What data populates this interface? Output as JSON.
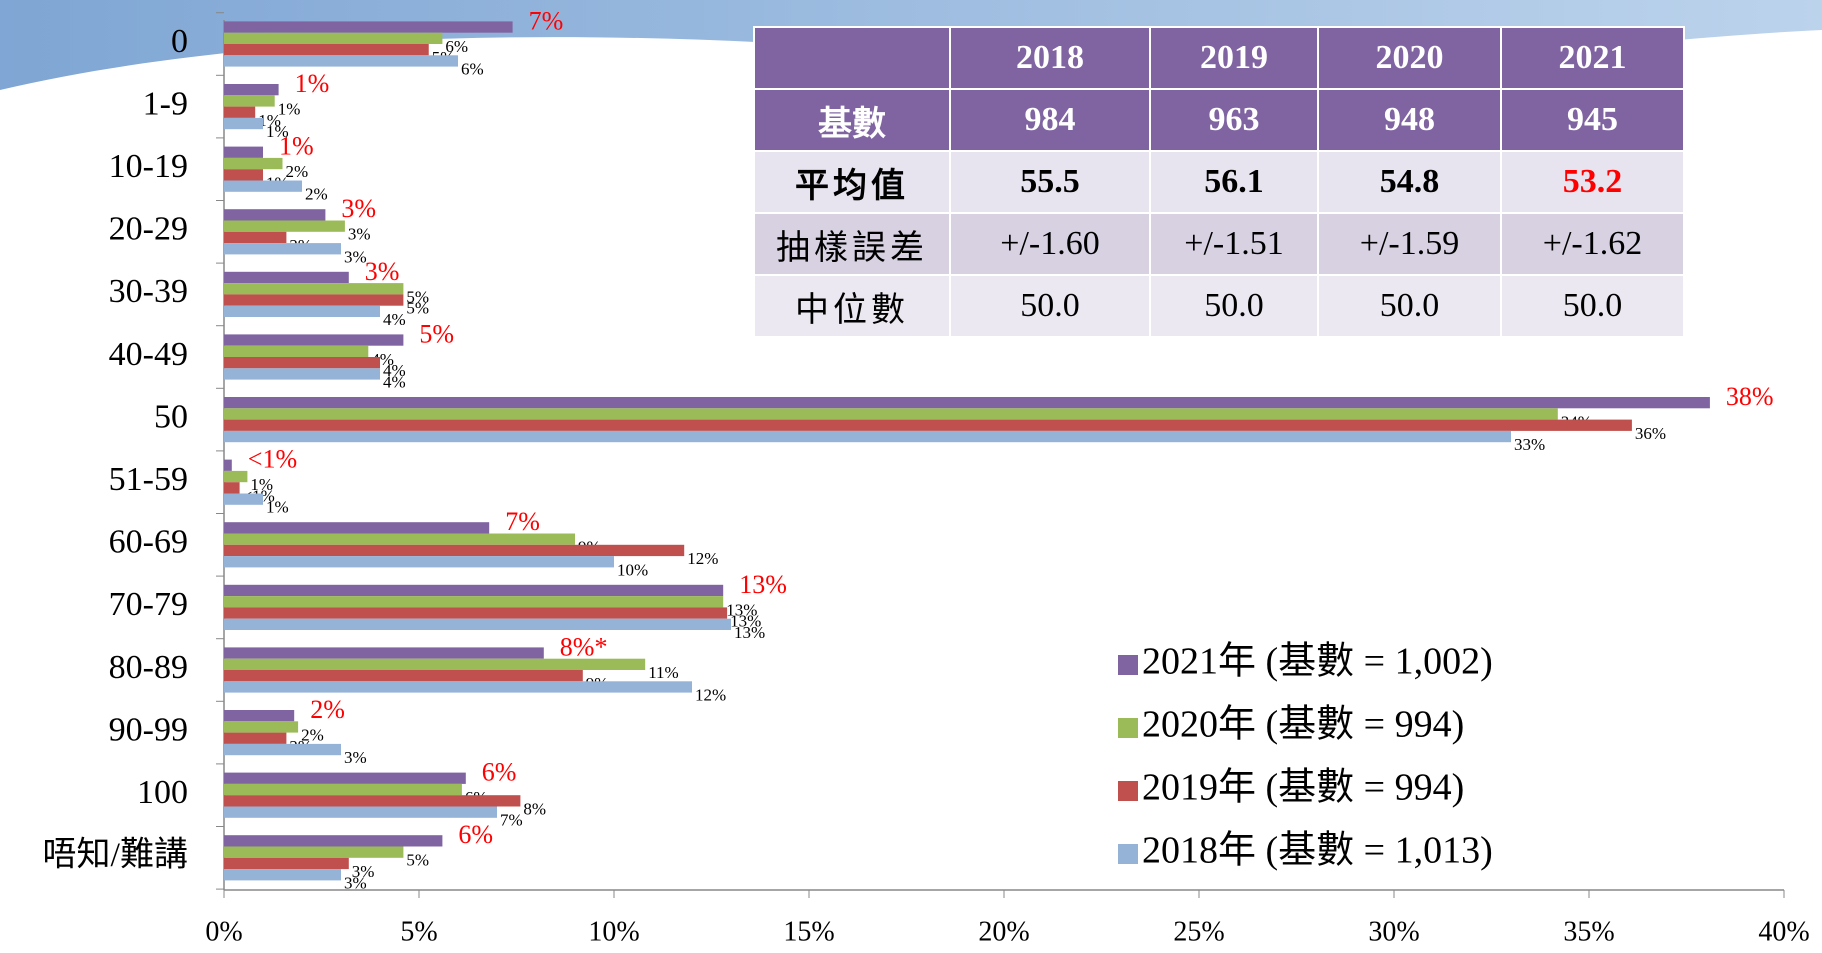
{
  "chart_data": {
    "type": "barh",
    "categories": [
      "0",
      "1-9",
      "10-19",
      "20-29",
      "30-39",
      "40-49",
      "50",
      "51-59",
      "60-69",
      "70-79",
      "80-89",
      "90-99",
      "100",
      "唔知/難講"
    ],
    "series": [
      {
        "name": "2021年 (基數 = 1,002)",
        "color": "#8064a2",
        "values": [
          7.4,
          1.4,
          1.0,
          2.6,
          3.2,
          4.6,
          38.1,
          0.2,
          6.8,
          12.8,
          8.2,
          1.8,
          6.2,
          5.6
        ],
        "value_labels": [
          "7%",
          "1%",
          "1%",
          "3%",
          "3%",
          "5%",
          "38%",
          "<1%",
          "7%",
          "13%",
          "8%*",
          "2%",
          "6%",
          "6%"
        ]
      },
      {
        "name": "2020年 (基數 = 994)",
        "color": "#9bbb59",
        "values": [
          5.6,
          1.3,
          1.5,
          3.1,
          4.6,
          3.7,
          34.2,
          0.6,
          9.0,
          12.8,
          10.8,
          1.9,
          6.1,
          4.6
        ],
        "value_labels": [
          "6%",
          "1%",
          "2%",
          "3%",
          "5%",
          "4%",
          "34%",
          "1%",
          "9%",
          "13%",
          "11%",
          "2%",
          "6%",
          "5%"
        ]
      },
      {
        "name": "2019年 (基數 = 994)",
        "color": "#c0504d",
        "values": [
          5.25,
          0.8,
          1.0,
          1.6,
          4.6,
          4.0,
          36.1,
          0.4,
          11.8,
          12.9,
          9.2,
          1.6,
          7.6,
          3.2
        ],
        "value_labels": [
          "5%",
          "1%",
          "1%",
          "2%",
          "5%",
          "4%",
          "36%",
          "<1%",
          "12%",
          "13%",
          "9%",
          "2%",
          "8%",
          "3%"
        ]
      },
      {
        "name": "2018年 (基數 = 1,013)",
        "color": "#95b3d7",
        "values": [
          6.0,
          1.0,
          2.0,
          3.0,
          4.0,
          4.0,
          33.0,
          1.0,
          10.0,
          13.0,
          12.0,
          3.0,
          7.0,
          3.0
        ],
        "value_labels": [
          "6%",
          "1%",
          "2%",
          "3%",
          "4%",
          "4%",
          "33%",
          "1%",
          "10%",
          "13%",
          "12%",
          "3%",
          "7%",
          "3%"
        ]
      }
    ],
    "xlim": [
      0,
      40
    ],
    "xticks": [
      {
        "value": 0,
        "label": "0%"
      },
      {
        "value": 5,
        "label": "5%"
      },
      {
        "value": 10,
        "label": "10%"
      },
      {
        "value": 15,
        "label": "15%"
      },
      {
        "value": 20,
        "label": "20%"
      },
      {
        "value": 25,
        "label": "25%"
      },
      {
        "value": 30,
        "label": "30%"
      },
      {
        "value": 35,
        "label": "35%"
      },
      {
        "value": 40,
        "label": "40%"
      }
    ],
    "legend": "lower right",
    "highlight_label_color": "#ff0000"
  },
  "table": {
    "header": [
      "2018",
      "2019",
      "2020",
      "2021"
    ],
    "rows": [
      [
        "基數",
        "984",
        "963",
        "948",
        "945"
      ],
      [
        "平均值",
        "55.5",
        "56.1",
        "54.8",
        "53.2"
      ],
      [
        "抽樣誤差",
        "+/-1.60",
        "+/-1.51",
        "+/-1.59",
        "+/-1.62"
      ],
      [
        "中位數",
        "50.0",
        "50.0",
        "50.0",
        "50.0"
      ]
    ],
    "highlight_cell": [
      1,
      4
    ],
    "highlight_color": "#ff0000"
  }
}
